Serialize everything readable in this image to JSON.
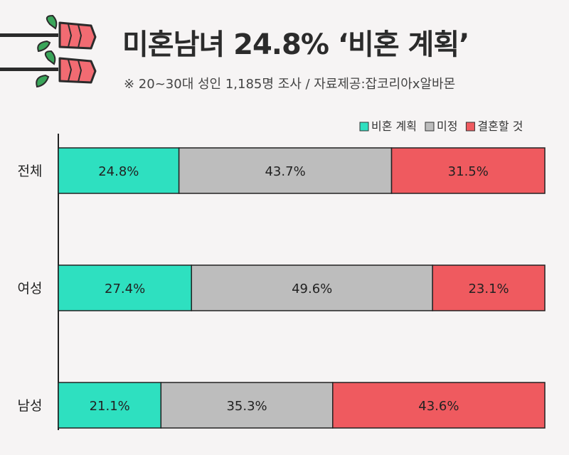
{
  "title": "미혼남녀 24.8% ‘비혼 계획’",
  "subtitle": "※ 20~30대 성인 1,185명 조사 / 자료제공:잡코리아x알바몬",
  "colors": {
    "비혼 계획": "#2ee0c0",
    "미정": "#bdbdbd",
    "결혼할 것": "#ef5a5f",
    "background": "#f6f4f4",
    "rose": "#f26b72",
    "leaf": "#3aa55a"
  },
  "chart_data": {
    "type": "bar",
    "orientation": "horizontal",
    "stacked": true,
    "categories": [
      "전체",
      "여성",
      "남성"
    ],
    "series": [
      {
        "name": "비혼 계획",
        "values": [
          24.8,
          27.4,
          21.1
        ]
      },
      {
        "name": "미정",
        "values": [
          43.7,
          49.6,
          35.3
        ]
      },
      {
        "name": "결혼할 것",
        "values": [
          31.5,
          23.1,
          43.6
        ]
      }
    ],
    "unit": "%",
    "legend_position": "top-right",
    "grid": false
  }
}
